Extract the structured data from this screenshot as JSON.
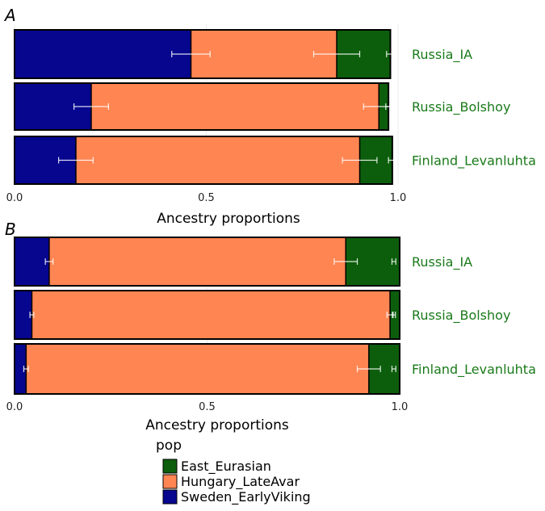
{
  "chart_data": [
    {
      "panel_label": "A",
      "type": "bar",
      "orientation": "horizontal",
      "stacked": true,
      "categories": [
        "Russia_IA",
        "Russia_Bolshoy",
        "Finland_Levanluhta"
      ],
      "series": [
        {
          "name": "Sweden_EarlyViking",
          "values": [
            0.46,
            0.2,
            0.16
          ],
          "error": [
            0.05,
            0.045,
            0.045
          ]
        },
        {
          "name": "Hungary_LateAvar",
          "values": [
            0.38,
            0.75,
            0.74
          ],
          "error": [
            0.06,
            0.04,
            0.045
          ]
        },
        {
          "name": "East_Eurasian",
          "values": [
            0.14,
            0.025,
            0.085
          ],
          "error": [
            0.01,
            0.007,
            0.01
          ]
        }
      ],
      "xlabel": "Ancestry proportions",
      "xlim": [
        0,
        1
      ],
      "xticks": [
        "0.0",
        "0.5",
        "1.0"
      ],
      "grid": true
    },
    {
      "panel_label": "B",
      "type": "bar",
      "orientation": "horizontal",
      "stacked": true,
      "categories": [
        "Russia_IA",
        "Russia_Bolshoy",
        "Finland_Levanluhta"
      ],
      "series": [
        {
          "name": "Sweden_EarlyViking",
          "values": [
            0.09,
            0.045,
            0.03
          ],
          "error": [
            0.01,
            0.005,
            0.006
          ]
        },
        {
          "name": "Hungary_LateAvar",
          "values": [
            0.77,
            0.93,
            0.89
          ],
          "error": [
            0.03,
            0.008,
            0.03
          ]
        },
        {
          "name": "East_Eurasian",
          "values": [
            0.14,
            0.025,
            0.08
          ],
          "error": [
            0.005,
            0.004,
            0.005
          ]
        }
      ],
      "xlabel": "Ancestry proportions",
      "xlim": [
        0,
        1
      ],
      "xticks": [
        "0.0",
        "0.5",
        "1.0"
      ],
      "grid": true
    }
  ],
  "legend": {
    "title": "pop",
    "entries": [
      {
        "label": "East_Eurasian",
        "color": "#0c5e0c"
      },
      {
        "label": "Hungary_LateAvar",
        "color": "#ff8552"
      },
      {
        "label": "Sweden_EarlyViking",
        "color": "#06068f"
      }
    ]
  },
  "colors": {
    "Sweden_EarlyViking": "#06068f",
    "Hungary_LateAvar": "#ff8552",
    "East_Eurasian": "#0c5e0c",
    "category_label": "#1a7a1a",
    "error_bar": "#ffffff"
  }
}
